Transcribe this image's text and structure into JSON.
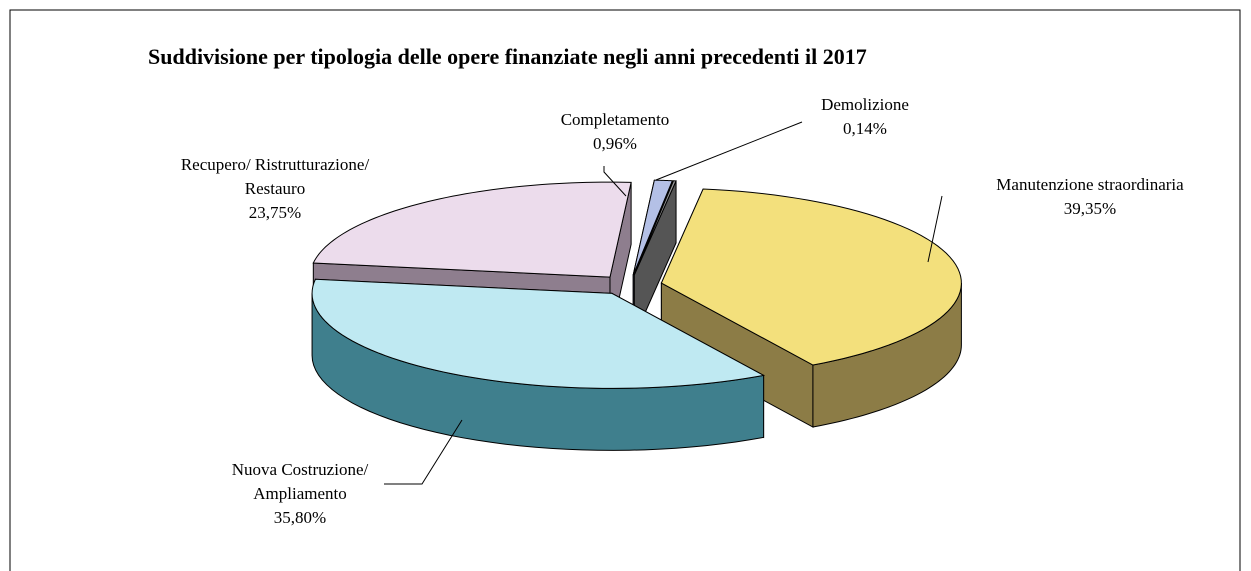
{
  "chart_data": {
    "type": "pie3d",
    "title": "Suddivisione per tipologia delle opere finanziate negli anni precedenti il 2017",
    "categories": [
      "Manutenzione straordinaria",
      "Nuova Costruzione/ Ampliamento",
      "Recupero/ Ristrutturazione/ Restauro",
      "Completamento",
      "Demolizione"
    ],
    "values": [
      39.35,
      35.8,
      23.75,
      0.96,
      0.14
    ],
    "value_labels": [
      "39,35%",
      "35,80%",
      "23,75%",
      "0,96%",
      "0,14%"
    ],
    "colors": [
      "#f3e07c",
      "#bfe9f2",
      "#ecdcec",
      "#b4c0e6",
      "#9a9a9a"
    ],
    "side_colors": [
      "#8c7c46",
      "#3f7f8d",
      "#8e7e8e",
      "#6a76a0",
      "#555555"
    ]
  }
}
